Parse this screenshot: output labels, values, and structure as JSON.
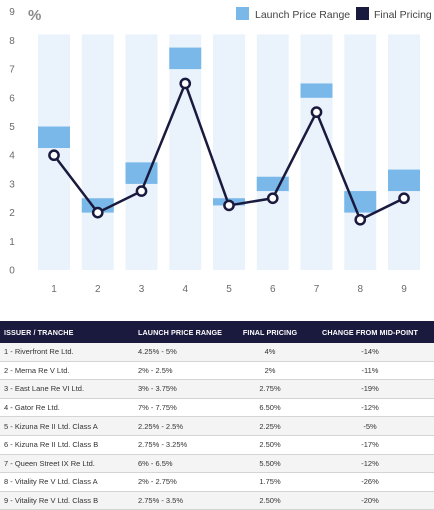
{
  "chart_data": {
    "type": "bar",
    "unit_label": "%",
    "categories": [
      "1",
      "2",
      "3",
      "4",
      "5",
      "6",
      "7",
      "8",
      "9"
    ],
    "ylim": [
      0,
      8
    ],
    "yticks": [
      0,
      1,
      2,
      3,
      4,
      5,
      6,
      7,
      8,
      9
    ],
    "grid": false,
    "legend_position": "top-right",
    "series": [
      {
        "name": "Launch Price Range",
        "kind": "floating-bar",
        "color": "#7ab8ea",
        "values": [
          [
            4.25,
            5
          ],
          [
            2,
            2.5
          ],
          [
            3,
            3.75
          ],
          [
            7,
            7.75
          ],
          [
            2.25,
            2.5
          ],
          [
            2.75,
            3.25
          ],
          [
            6,
            6.5
          ],
          [
            2,
            2.75
          ],
          [
            2.75,
            3.5
          ]
        ]
      },
      {
        "name": "Final Pricing",
        "kind": "line",
        "color": "#1a1a3e",
        "values": [
          4,
          2,
          2.75,
          6.5,
          2.25,
          2.5,
          5.5,
          1.75,
          2.5
        ]
      }
    ],
    "background_band_color": "#eaf3fc"
  },
  "table": {
    "headers": [
      "ISSUER / TRANCHE",
      "LAUNCH PRICE RANGE",
      "FINAL PRICING",
      "CHANGE FROM MID-POINT"
    ],
    "rows": [
      [
        "1 - Riverfront Re Ltd.",
        "4.25% - 5%",
        "4%",
        "-14%"
      ],
      [
        "2 - Merna Re V Ltd.",
        "2% - 2.5%",
        "2%",
        "-11%"
      ],
      [
        "3 - East Lane Re VI Ltd.",
        "3% - 3.75%",
        "2.75%",
        "-19%"
      ],
      [
        "4 - Gator Re Ltd.",
        "7% - 7.75%",
        "6.50%",
        "-12%"
      ],
      [
        "5 - Kizuna Re II Ltd. Class A",
        "2.25% - 2.5%",
        "2.25%",
        "-5%"
      ],
      [
        "6 - Kizuna Re II Ltd. Class B",
        "2.75% - 3.25%",
        "2.50%",
        "-17%"
      ],
      [
        "7 - Queen Street IX Re Ltd.",
        "6% - 6.5%",
        "5.50%",
        "-12%"
      ],
      [
        "8 - Vitality Re V Ltd. Class A",
        "2% - 2.75%",
        "1.75%",
        "-26%"
      ],
      [
        "9 - Vitality Re V Ltd. Class B",
        "2.75% - 3.5%",
        "2.50%",
        "-20%"
      ]
    ]
  }
}
